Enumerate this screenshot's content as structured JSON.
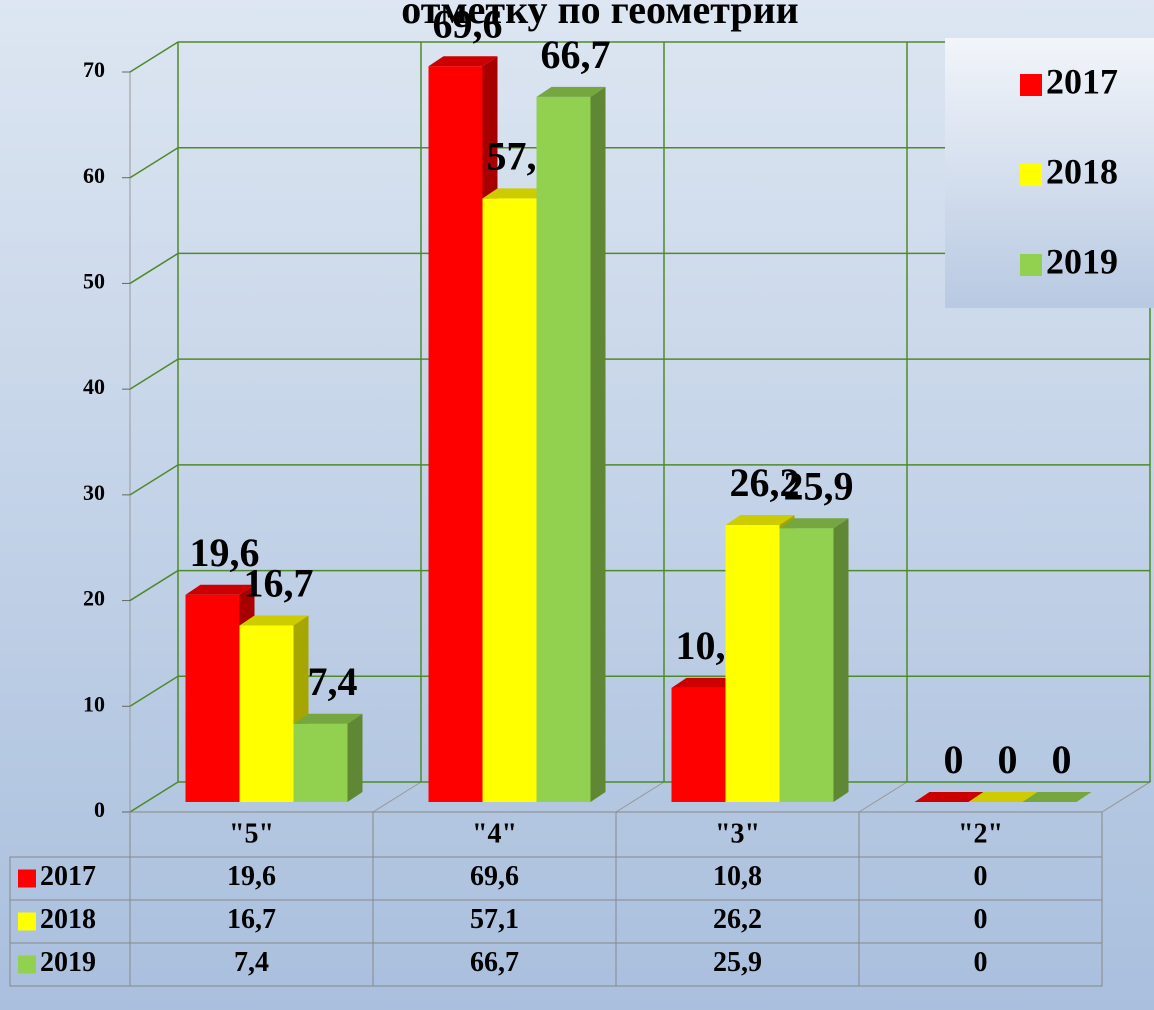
{
  "chart_data": {
    "type": "bar3d",
    "title": "отметку по геометрии",
    "categories": [
      "\"5\"",
      "\"4\"",
      "\"3\"",
      "\"2\""
    ],
    "series": [
      {
        "name": "2017",
        "color": "#ff0000",
        "values": [
          19.6,
          69.6,
          10.8,
          0
        ],
        "value_labels": [
          "19,6",
          "69,6",
          "10,8",
          "0"
        ]
      },
      {
        "name": "2018",
        "color": "#ffff00",
        "values": [
          16.7,
          57.1,
          26.2,
          0
        ],
        "value_labels": [
          "16,7",
          "57,1",
          "26,2",
          "0"
        ]
      },
      {
        "name": "2019",
        "color": "#92d050",
        "values": [
          7.4,
          66.7,
          25.9,
          0
        ],
        "value_labels": [
          "7,4",
          "66,7",
          "25,9",
          "0"
        ]
      }
    ],
    "ylim": [
      0,
      70
    ],
    "yticks": [
      0,
      10,
      20,
      30,
      40,
      50,
      60,
      70
    ],
    "grid": true,
    "legend": "top-right"
  }
}
